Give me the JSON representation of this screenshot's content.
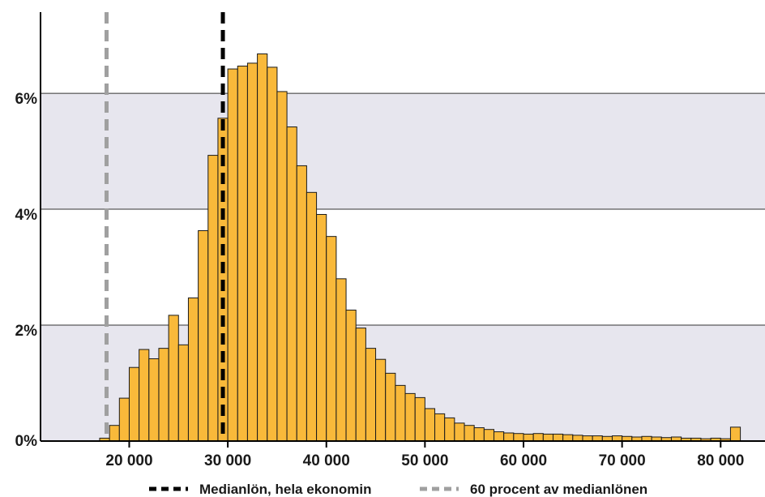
{
  "chart_data": {
    "type": "bar",
    "x_tick_labels": [
      "20 000",
      "30 000",
      "40 000",
      "50 000",
      "60 000",
      "70 000",
      "80 000"
    ],
    "x_ticks": [
      20000,
      30000,
      40000,
      50000,
      60000,
      70000,
      80000
    ],
    "y_tick_labels": [
      "0%",
      "2%",
      "4%",
      "6%"
    ],
    "y_ticks": [
      0,
      2,
      4,
      6
    ],
    "xlim": [
      11000,
      84500
    ],
    "ylim": [
      0,
      7.4
    ],
    "grid": "horizontal",
    "bands": [
      [
        0,
        2
      ],
      [
        4,
        6
      ]
    ],
    "bin_width": 1000,
    "bins_start": 17000,
    "values": [
      0.05,
      0.27,
      0.74,
      1.27,
      1.58,
      1.42,
      1.6,
      2.17,
      1.66,
      2.47,
      3.63,
      4.93,
      5.57,
      6.42,
      6.47,
      6.52,
      6.68,
      6.45,
      6.03,
      5.42,
      4.75,
      4.29,
      3.91,
      3.53,
      2.8,
      2.26,
      1.95,
      1.6,
      1.41,
      1.17,
      0.96,
      0.82,
      0.75,
      0.56,
      0.47,
      0.4,
      0.31,
      0.27,
      0.23,
      0.2,
      0.16,
      0.14,
      0.13,
      0.12,
      0.13,
      0.12,
      0.12,
      0.11,
      0.1,
      0.09,
      0.09,
      0.08,
      0.09,
      0.08,
      0.07,
      0.08,
      0.07,
      0.06,
      0.07,
      0.05,
      0.05,
      0.04,
      0.05,
      0.04,
      0.24
    ],
    "reference_lines": [
      {
        "label": "Medianlön, hela ekonomin",
        "x": 29500,
        "color": "#000000"
      },
      {
        "label": "60 procent av medianlönen",
        "x": 17700,
        "color": "#a0a0a0"
      }
    ],
    "bar_color": "#f9b93a",
    "bar_edge_color": "#1a1a1a",
    "band_color": "#e7e6ee",
    "legend_position": "bottom"
  }
}
